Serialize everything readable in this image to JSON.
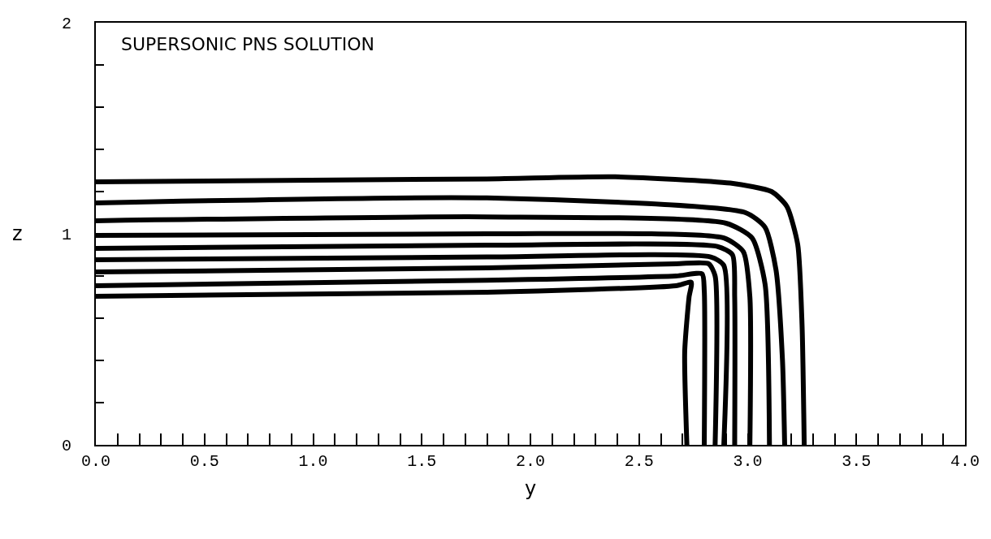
{
  "chart_data": {
    "type": "line",
    "title": "SUPERSONIC PNS SOLUTION",
    "xlabel": "y",
    "ylabel": "z",
    "xlim": [
      0,
      4
    ],
    "ylim": [
      0,
      2
    ],
    "xticks": [
      {
        "value": 0,
        "label": "0.0"
      },
      {
        "value": 0.1,
        "label": null
      },
      {
        "value": 0.2,
        "label": null
      },
      {
        "value": 0.3,
        "label": null
      },
      {
        "value": 0.4,
        "label": null
      },
      {
        "value": 0.5,
        "label": "0.5"
      },
      {
        "value": 0.6,
        "label": null
      },
      {
        "value": 0.7,
        "label": null
      },
      {
        "value": 0.8,
        "label": null
      },
      {
        "value": 0.9,
        "label": null
      },
      {
        "value": 1,
        "label": "1.0"
      },
      {
        "value": 1.1,
        "label": null
      },
      {
        "value": 1.2,
        "label": null
      },
      {
        "value": 1.3,
        "label": null
      },
      {
        "value": 1.4,
        "label": null
      },
      {
        "value": 1.5,
        "label": "1.5"
      },
      {
        "value": 1.6,
        "label": null
      },
      {
        "value": 1.7,
        "label": null
      },
      {
        "value": 1.8,
        "label": null
      },
      {
        "value": 1.9,
        "label": null
      },
      {
        "value": 2,
        "label": "2.0"
      },
      {
        "value": 2.1,
        "label": null
      },
      {
        "value": 2.2,
        "label": null
      },
      {
        "value": 2.3,
        "label": null
      },
      {
        "value": 2.4,
        "label": null
      },
      {
        "value": 2.5,
        "label": "2.5"
      },
      {
        "value": 2.6,
        "label": null
      },
      {
        "value": 2.7,
        "label": null
      },
      {
        "value": 2.8,
        "label": null
      },
      {
        "value": 2.9,
        "label": null
      },
      {
        "value": 3,
        "label": "3.0"
      },
      {
        "value": 3.1,
        "label": null
      },
      {
        "value": 3.2,
        "label": null
      },
      {
        "value": 3.3,
        "label": null
      },
      {
        "value": 3.4,
        "label": null
      },
      {
        "value": 3.5,
        "label": "3.5"
      },
      {
        "value": 3.6,
        "label": null
      },
      {
        "value": 3.7,
        "label": null
      },
      {
        "value": 3.8,
        "label": null
      },
      {
        "value": 3.9,
        "label": null
      },
      {
        "value": 4,
        "label": "4.0"
      }
    ],
    "yticks": [
      0,
      {
        "value": 0.2,
        "label": null
      },
      {
        "value": 0.4,
        "label": null
      },
      {
        "value": 0.6,
        "label": null
      },
      {
        "value": 0.8,
        "label": null
      },
      1,
      {
        "value": 1.2,
        "label": null
      },
      {
        "value": 1.4,
        "label": null
      },
      {
        "value": 1.6,
        "label": null
      },
      {
        "value": 1.8,
        "label": null
      },
      2
    ],
    "marker": "none",
    "line_style": "solid",
    "series": [
      {
        "color": "#000000",
        "x": [
          0,
          1.8,
          2.39,
          2.92,
          3.11,
          3.18,
          3.23,
          3.25,
          3.26
        ],
        "values": [
          1.246,
          1.26,
          1.27,
          1.24,
          1.2,
          1.13,
          0.95,
          0.57,
          0
        ]
      },
      {
        "color": "#000000",
        "x": [
          0,
          1.8,
          2.99,
          3.08,
          3.13,
          3.16,
          3.17
        ],
        "values": [
          1.146,
          1.17,
          1.1,
          1.03,
          0.83,
          0.4,
          0
        ]
      },
      {
        "color": "#000000",
        "x": [
          0,
          1.8,
          2.9,
          3.02,
          3.08,
          3.1
        ],
        "values": [
          1.062,
          1.08,
          1.05,
          0.98,
          0.76,
          0
        ]
      },
      {
        "color": "#000000",
        "x": [
          0,
          1.8,
          2.89,
          2.98,
          3.01,
          3.01
        ],
        "values": [
          0.992,
          1,
          0.98,
          0.915,
          0.7,
          0
        ]
      },
      {
        "color": "#000000",
        "x": [
          0,
          1.8,
          2.86,
          2.93,
          2.94,
          2.94
        ],
        "values": [
          0.931,
          0.946,
          0.94,
          0.9,
          0.7,
          0
        ]
      },
      {
        "color": "#000000",
        "x": [
          0,
          1.8,
          2.83,
          2.89,
          2.89
        ],
        "values": [
          0.877,
          0.89,
          0.89,
          0.85,
          0
        ]
      },
      {
        "color": "#000000",
        "x": [
          0,
          1.8,
          2.67,
          2.82,
          2.85,
          2.85
        ],
        "values": [
          0.819,
          0.838,
          0.858,
          0.858,
          0.8,
          0
        ]
      },
      {
        "color": "#000000",
        "x": [
          0,
          1.8,
          2.67,
          2.79,
          2.8,
          2.8
        ],
        "values": [
          0.754,
          0.78,
          0.8,
          0.81,
          0.73,
          0
        ]
      },
      {
        "color": "#000000",
        "x": [
          0,
          1.8,
          2.67,
          2.74,
          2.73,
          2.71,
          2.72
        ],
        "values": [
          0.704,
          0.723,
          0.754,
          0.77,
          0.7,
          0.44,
          0
        ]
      }
    ]
  }
}
